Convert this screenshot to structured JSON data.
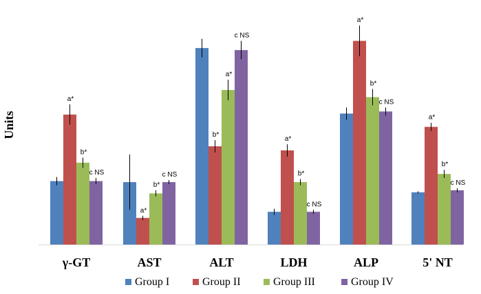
{
  "chart_data": {
    "type": "bar",
    "ylabel": "Units",
    "xlabel": "",
    "title": "",
    "ylim": [
      0,
      100
    ],
    "grid": false,
    "legend_position": "bottom",
    "categories": [
      "γ-GT",
      "AST",
      "ALT",
      "LDH",
      "ALP",
      "5' NT"
    ],
    "series": [
      {
        "name": "Group I",
        "color": "#4F81BD",
        "values": [
          31,
          30.5,
          96,
          16,
          64,
          25.5
        ],
        "errors": [
          2,
          13.5,
          4.5,
          1.5,
          3,
          0.5
        ],
        "labels": [
          "",
          "",
          "",
          "",
          "",
          ""
        ]
      },
      {
        "name": "Group II",
        "color": "#C0504D",
        "values": [
          63.5,
          13,
          48,
          46,
          99.5,
          57.5
        ],
        "errors": [
          5,
          1,
          3,
          3,
          7.5,
          2
        ],
        "labels": [
          "a*",
          "a*",
          "b*",
          "a*",
          "a*",
          "a*"
        ]
      },
      {
        "name": "Group III",
        "color": "#9BBB59",
        "values": [
          40,
          25,
          75.5,
          30.5,
          72,
          34.5
        ],
        "errors": [
          2.5,
          1.5,
          5,
          1.5,
          4,
          2
        ],
        "labels": [
          "b*",
          "b*",
          "a*",
          "b*",
          "b*",
          "b*"
        ]
      },
      {
        "name": "Group IV",
        "color": "#8064A2",
        "values": [
          31,
          30.5,
          95,
          16,
          65,
          26.5
        ],
        "errors": [
          1.5,
          1,
          4.5,
          1,
          2,
          1
        ],
        "labels": [
          "c NS",
          "c NS",
          "c NS",
          "c NS",
          "c NS",
          "c NS"
        ]
      }
    ]
  }
}
